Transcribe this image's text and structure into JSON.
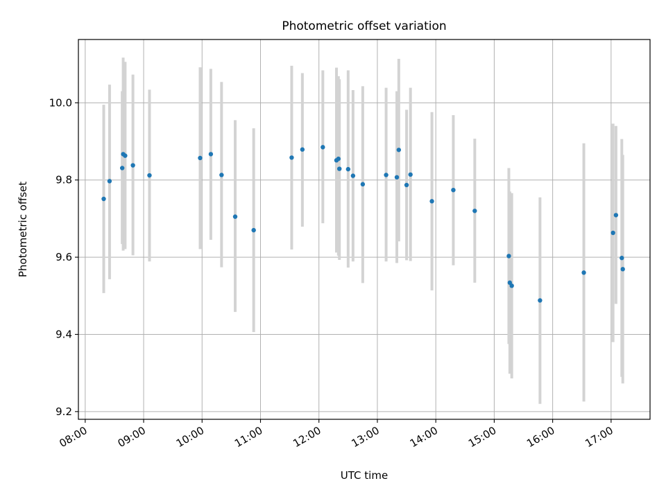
{
  "chart_data": {
    "type": "scatter",
    "title": "Photometric offset variation",
    "xlabel": "UTC time",
    "ylabel": "Photometric offset",
    "xlim": [
      "07:53",
      "17:40"
    ],
    "ylim": [
      9.18,
      10.164
    ],
    "xticks": [
      "08:00",
      "09:00",
      "10:00",
      "11:00",
      "12:00",
      "13:00",
      "14:00",
      "15:00",
      "16:00",
      "17:00"
    ],
    "yticks": [
      9.2,
      9.4,
      9.6,
      9.8,
      10.0
    ],
    "ytick_labels": [
      "9.2",
      "9.4",
      "9.6",
      "9.8",
      "10.0"
    ],
    "grid": true,
    "marker_color": "#1f77b4",
    "errorbar_color": "#d3d3d3",
    "series": [
      {
        "points": [
          {
            "x": "08:19",
            "y": 9.751,
            "ylo": 9.507,
            "yhi": 9.995
          },
          {
            "x": "08:25",
            "y": 9.797,
            "ylo": 9.543,
            "yhi": 10.047
          },
          {
            "x": "08:38",
            "y": 9.831,
            "ylo": 9.634,
            "yhi": 10.03
          },
          {
            "x": "08:39",
            "y": 9.867,
            "ylo": 9.617,
            "yhi": 10.117
          },
          {
            "x": "08:41",
            "y": 9.863,
            "ylo": 9.621,
            "yhi": 10.106
          },
          {
            "x": "08:49",
            "y": 9.838,
            "ylo": 9.605,
            "yhi": 10.073
          },
          {
            "x": "09:06",
            "y": 9.812,
            "ylo": 9.589,
            "yhi": 10.034
          },
          {
            "x": "09:58",
            "y": 9.857,
            "ylo": 9.621,
            "yhi": 10.092
          },
          {
            "x": "10:09",
            "y": 9.867,
            "ylo": 9.645,
            "yhi": 10.088
          },
          {
            "x": "10:20",
            "y": 9.813,
            "ylo": 9.574,
            "yhi": 10.054
          },
          {
            "x": "10:34",
            "y": 9.705,
            "ylo": 9.458,
            "yhi": 9.955
          },
          {
            "x": "10:53",
            "y": 9.67,
            "ylo": 9.406,
            "yhi": 9.934
          },
          {
            "x": "11:32",
            "y": 9.858,
            "ylo": 9.62,
            "yhi": 10.096
          },
          {
            "x": "11:43",
            "y": 9.879,
            "ylo": 9.679,
            "yhi": 10.077
          },
          {
            "x": "12:04",
            "y": 9.885,
            "ylo": 9.688,
            "yhi": 10.084
          },
          {
            "x": "12:18",
            "y": 9.851,
            "ylo": 9.612,
            "yhi": 10.091
          },
          {
            "x": "12:20",
            "y": 9.855,
            "ylo": 9.604,
            "yhi": 10.069
          },
          {
            "x": "12:21",
            "y": 9.829,
            "ylo": 9.593,
            "yhi": 10.061
          },
          {
            "x": "12:30",
            "y": 9.828,
            "ylo": 9.573,
            "yhi": 10.084
          },
          {
            "x": "12:35",
            "y": 9.811,
            "ylo": 9.589,
            "yhi": 10.033
          },
          {
            "x": "12:45",
            "y": 9.789,
            "ylo": 9.533,
            "yhi": 10.043
          },
          {
            "x": "13:09",
            "y": 9.813,
            "ylo": 9.589,
            "yhi": 10.039
          },
          {
            "x": "13:20",
            "y": 9.807,
            "ylo": 9.585,
            "yhi": 10.03
          },
          {
            "x": "13:22",
            "y": 9.878,
            "ylo": 9.641,
            "yhi": 10.114
          },
          {
            "x": "13:30",
            "y": 9.787,
            "ylo": 9.592,
            "yhi": 9.982
          },
          {
            "x": "13:34",
            "y": 9.814,
            "ylo": 9.59,
            "yhi": 10.039
          },
          {
            "x": "13:56",
            "y": 9.745,
            "ylo": 9.514,
            "yhi": 9.976
          },
          {
            "x": "14:18",
            "y": 9.774,
            "ylo": 9.579,
            "yhi": 9.968
          },
          {
            "x": "14:40",
            "y": 9.72,
            "ylo": 9.534,
            "yhi": 9.907
          },
          {
            "x": "15:15",
            "y": 9.603,
            "ylo": 9.375,
            "yhi": 9.831
          },
          {
            "x": "15:16",
            "y": 9.534,
            "ylo": 9.298,
            "yhi": 9.77
          },
          {
            "x": "15:18",
            "y": 9.526,
            "ylo": 9.286,
            "yhi": 9.766
          },
          {
            "x": "15:47",
            "y": 9.488,
            "ylo": 9.22,
            "yhi": 9.755
          },
          {
            "x": "16:32",
            "y": 9.56,
            "ylo": 9.226,
            "yhi": 9.895
          },
          {
            "x": "17:02",
            "y": 9.663,
            "ylo": 9.38,
            "yhi": 9.946
          },
          {
            "x": "17:05",
            "y": 9.709,
            "ylo": 9.479,
            "yhi": 9.94
          },
          {
            "x": "17:11",
            "y": 9.598,
            "ylo": 9.29,
            "yhi": 9.906
          },
          {
            "x": "17:12",
            "y": 9.569,
            "ylo": 9.273,
            "yhi": 9.865
          }
        ]
      }
    ]
  }
}
